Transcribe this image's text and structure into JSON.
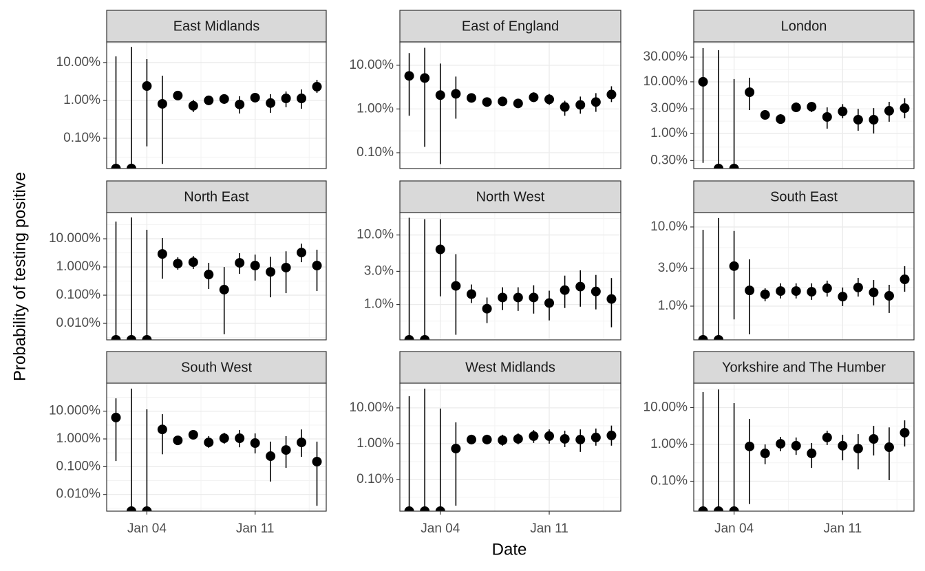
{
  "xlabel": "Date",
  "ylabel": "Probability of testing positive",
  "chart_data": [
    {
      "type": "scatter",
      "title": "East Midlands",
      "color": "#000000",
      "log_y": true,
      "grid": true,
      "x": [
        2,
        3,
        4,
        5,
        6,
        7,
        8,
        9,
        10,
        11,
        12,
        13,
        14,
        15
      ],
      "values": [
        0.0158,
        0.0158,
        2.4,
        0.81,
        1.34,
        0.72,
        1.0,
        1.09,
        0.78,
        1.18,
        0.85,
        1.13,
        1.13,
        2.3
      ],
      "lower": [
        0.0158,
        0.0158,
        0.061,
        0.021,
        1.04,
        0.49,
        0.75,
        0.81,
        0.45,
        0.88,
        0.47,
        0.66,
        0.6,
        1.58
      ],
      "upper": [
        14.6,
        26,
        12.3,
        4.5,
        1.72,
        1.04,
        1.34,
        1.46,
        1.29,
        1.58,
        1.46,
        1.72,
        1.95,
        3.5
      ],
      "xlim": [
        1.4,
        15.6
      ],
      "xticks": [
        4,
        11
      ],
      "ylim": [
        0.0158,
        35
      ],
      "yticks": [
        {
          "value": 0.1,
          "label": "0.10%"
        },
        {
          "value": 1,
          "label": "1.00%"
        },
        {
          "value": 10,
          "label": "10.00%"
        }
      ]
    },
    {
      "type": "scatter",
      "title": "East of England",
      "color": "#000000",
      "log_y": true,
      "grid": true,
      "x": [
        2,
        3,
        4,
        5,
        6,
        7,
        8,
        9,
        10,
        11,
        12,
        13,
        14,
        15
      ],
      "values": [
        5.7,
        5.1,
        2.07,
        2.22,
        1.79,
        1.44,
        1.49,
        1.34,
        1.85,
        1.66,
        1.11,
        1.24,
        1.44,
        2.14
      ],
      "lower": [
        0.7,
        0.136,
        0.055,
        0.6,
        1.44,
        1.2,
        1.2,
        1.07,
        1.44,
        1.24,
        0.7,
        0.78,
        0.86,
        1.44
      ],
      "upper": [
        18.9,
        25,
        10.9,
        5.5,
        2.2,
        1.72,
        1.85,
        1.66,
        2.4,
        2.2,
        1.54,
        1.92,
        2.3,
        3.3
      ],
      "xlim": [
        1.4,
        15.6
      ],
      "xticks": [
        4,
        11
      ],
      "ylim": [
        0.0435,
        34
      ],
      "yticks": [
        {
          "value": 0.1,
          "label": "0.10%"
        },
        {
          "value": 1,
          "label": "1.00%"
        },
        {
          "value": 10,
          "label": "10.00%"
        }
      ]
    },
    {
      "type": "scatter",
      "title": "London",
      "color": "#000000",
      "log_y": true,
      "grid": true,
      "x": [
        2,
        3,
        4,
        5,
        6,
        7,
        8,
        9,
        10,
        11,
        12,
        13,
        14,
        15
      ],
      "values": [
        10,
        0.21,
        0.21,
        6.3,
        2.29,
        1.9,
        3.2,
        3.3,
        2.09,
        2.67,
        1.85,
        1.85,
        2.75,
        3.1
      ],
      "lower": [
        0.27,
        0.21,
        0.21,
        2.84,
        1.9,
        1.54,
        2.6,
        2.6,
        1.24,
        1.97,
        1.13,
        1.0,
        1.69,
        1.97
      ],
      "upper": [
        45,
        41,
        11.3,
        12,
        2.75,
        2.36,
        4.0,
        4.1,
        3.2,
        3.7,
        3.0,
        3.1,
        4.1,
        4.8
      ],
      "xlim": [
        1.4,
        15.6
      ],
      "xticks": [
        4,
        11
      ],
      "ylim": [
        0.21,
        59
      ],
      "yticks": [
        {
          "value": 0.3,
          "label": "0.30%"
        },
        {
          "value": 1,
          "label": "1.00%"
        },
        {
          "value": 3,
          "label": "3.00%"
        },
        {
          "value": 10,
          "label": "10.00%"
        },
        {
          "value": 30,
          "label": "30.00%"
        }
      ]
    },
    {
      "type": "scatter",
      "title": "North East",
      "color": "#000000",
      "log_y": true,
      "grid": true,
      "x": [
        2,
        3,
        4,
        5,
        6,
        7,
        8,
        9,
        10,
        11,
        12,
        13,
        14,
        15
      ],
      "values": [
        0.0026,
        0.0026,
        0.0026,
        2.9,
        1.32,
        1.48,
        0.54,
        0.157,
        1.4,
        1.12,
        0.67,
        0.95,
        3.25,
        1.12
      ],
      "lower": [
        0.0026,
        0.0026,
        0.0026,
        0.385,
        0.8,
        0.85,
        0.166,
        0.0041,
        0.57,
        0.33,
        0.084,
        0.118,
        1.48,
        0.14
      ],
      "upper": [
        40.7,
        57,
        20.8,
        10.6,
        2.2,
        2.45,
        1.4,
        1.0,
        3.1,
        2.75,
        2.3,
        3.6,
        6.7,
        4.1
      ],
      "xlim": [
        1.4,
        15.6
      ],
      "xticks": [
        4,
        11
      ],
      "ylim": [
        0.0026,
        85
      ],
      "yticks": [
        {
          "value": 0.01,
          "label": "0.010%"
        },
        {
          "value": 0.1,
          "label": "0.100%"
        },
        {
          "value": 1,
          "label": "1.000%"
        },
        {
          "value": 10,
          "label": "10.000%"
        }
      ]
    },
    {
      "type": "scatter",
      "title": "North West",
      "color": "#000000",
      "log_y": true,
      "grid": true,
      "x": [
        2,
        3,
        4,
        5,
        6,
        7,
        8,
        9,
        10,
        11,
        12,
        13,
        14,
        15
      ],
      "values": [
        0.31,
        0.31,
        6.2,
        1.85,
        1.41,
        0.87,
        1.26,
        1.26,
        1.26,
        1.05,
        1.61,
        1.81,
        1.54,
        1.2
      ],
      "lower": [
        0.31,
        0.31,
        1.31,
        0.367,
        1.05,
        0.54,
        0.83,
        0.81,
        0.74,
        0.59,
        0.89,
        0.93,
        0.85,
        0.47
      ],
      "upper": [
        17.7,
        16.9,
        16.9,
        5.3,
        1.94,
        1.26,
        1.77,
        1.77,
        1.89,
        1.58,
        2.6,
        3.1,
        2.66,
        2.4
      ],
      "xlim": [
        1.4,
        15.6
      ],
      "xticks": [
        4,
        11
      ],
      "ylim": [
        0.31,
        21
      ],
      "yticks": [
        {
          "value": 1,
          "label": "1.0%"
        },
        {
          "value": 3,
          "label": "3.0%"
        },
        {
          "value": 10,
          "label": "10.0%"
        }
      ]
    },
    {
      "type": "scatter",
      "title": "South East",
      "color": "#000000",
      "log_y": true,
      "grid": true,
      "x": [
        2,
        3,
        4,
        5,
        6,
        7,
        8,
        9,
        10,
        11,
        12,
        13,
        14,
        15
      ],
      "values": [
        0.375,
        0.375,
        3.2,
        1.58,
        1.41,
        1.55,
        1.55,
        1.52,
        1.68,
        1.32,
        1.72,
        1.49,
        1.35,
        2.18
      ],
      "lower": [
        0.375,
        0.375,
        0.68,
        0.44,
        1.15,
        1.25,
        1.25,
        1.2,
        1.32,
        1.0,
        1.32,
        1.02,
        0.82,
        1.52
      ],
      "upper": [
        9.2,
        13,
        8.9,
        3.9,
        1.68,
        1.94,
        1.94,
        1.94,
        2.1,
        1.72,
        2.27,
        2.14,
        1.86,
        3.2
      ],
      "xlim": [
        1.4,
        15.6
      ],
      "xticks": [
        4,
        11
      ],
      "ylim": [
        0.375,
        15.2
      ],
      "yticks": [
        {
          "value": 1,
          "label": "1.0%"
        },
        {
          "value": 3,
          "label": "3.0%"
        },
        {
          "value": 10,
          "label": "10.0%"
        }
      ]
    },
    {
      "type": "scatter",
      "title": "South West",
      "color": "#000000",
      "log_y": true,
      "grid": true,
      "x": [
        2,
        3,
        4,
        5,
        6,
        7,
        8,
        9,
        10,
        11,
        12,
        13,
        14,
        15
      ],
      "values": [
        5.9,
        0.0025,
        0.0025,
        2.2,
        0.89,
        1.41,
        0.75,
        1.06,
        1.06,
        0.71,
        0.24,
        0.4,
        0.75,
        0.152
      ],
      "lower": [
        0.16,
        0.0025,
        0.0025,
        0.28,
        0.67,
        1.0,
        0.48,
        0.67,
        0.5,
        0.3,
        0.029,
        0.091,
        0.226,
        0.0039
      ],
      "upper": [
        29,
        65,
        11.7,
        7.8,
        1.26,
        2.1,
        1.26,
        1.67,
        2.1,
        1.58,
        0.8,
        1.26,
        2.2,
        0.8
      ],
      "xlim": [
        1.4,
        15.6
      ],
      "xticks": [
        {
          "value": 4,
          "label": "Jan 04"
        },
        {
          "value": 11,
          "label": "Jan 11"
        }
      ],
      "ylim": [
        0.0025,
        102
      ],
      "yticks": [
        {
          "value": 0.01,
          "label": "0.010%"
        },
        {
          "value": 0.1,
          "label": "0.100%"
        },
        {
          "value": 1,
          "label": "1.000%"
        },
        {
          "value": 10,
          "label": "10.000%"
        }
      ]
    },
    {
      "type": "scatter",
      "title": "West Midlands",
      "color": "#000000",
      "log_y": true,
      "grid": true,
      "x": [
        2,
        3,
        4,
        5,
        6,
        7,
        8,
        9,
        10,
        11,
        12,
        13,
        14,
        15
      ],
      "values": [
        0.013,
        0.013,
        0.013,
        0.73,
        1.3,
        1.3,
        1.25,
        1.36,
        1.63,
        1.63,
        1.36,
        1.3,
        1.49,
        1.7
      ],
      "lower": [
        0.013,
        0.013,
        0.013,
        0.0185,
        0.96,
        0.96,
        0.88,
        0.96,
        1.05,
        1.0,
        0.8,
        0.59,
        0.88,
        0.88
      ],
      "upper": [
        21.3,
        34.6,
        9.6,
        3.95,
        1.78,
        1.78,
        1.78,
        1.94,
        2.4,
        2.5,
        2.3,
        2.5,
        2.65,
        3.2
      ],
      "xlim": [
        1.4,
        15.6
      ],
      "xticks": [
        {
          "value": 4,
          "label": "Jan 04"
        },
        {
          "value": 11,
          "label": "Jan 11"
        }
      ],
      "ylim": [
        0.013,
        49
      ],
      "yticks": [
        {
          "value": 0.1,
          "label": "0.10%"
        },
        {
          "value": 1,
          "label": "1.00%"
        },
        {
          "value": 10,
          "label": "10.00%"
        }
      ]
    },
    {
      "type": "scatter",
      "title": "Yorkshire and The Humber",
      "color": "#000000",
      "log_y": true,
      "grid": true,
      "x": [
        2,
        3,
        4,
        5,
        6,
        7,
        8,
        9,
        10,
        11,
        12,
        13,
        14,
        15
      ],
      "values": [
        0.0154,
        0.0154,
        0.0154,
        0.88,
        0.57,
        1.04,
        0.92,
        0.57,
        1.54,
        0.92,
        0.77,
        1.41,
        0.84,
        2.08
      ],
      "lower": [
        0.0154,
        0.0154,
        0.0154,
        0.024,
        0.29,
        0.65,
        0.52,
        0.23,
        0.96,
        0.37,
        0.21,
        0.5,
        0.107,
        0.88
      ],
      "upper": [
        26.3,
        31,
        13.2,
        4.9,
        1.0,
        1.6,
        1.54,
        1.09,
        2.36,
        1.83,
        1.9,
        3.2,
        2.9,
        4.5
      ],
      "xlim": [
        1.4,
        15.6
      ],
      "xticks": [
        {
          "value": 4,
          "label": "Jan 04"
        },
        {
          "value": 11,
          "label": "Jan 11"
        }
      ],
      "ylim": [
        0.0154,
        46
      ],
      "yticks": [
        {
          "value": 0.1,
          "label": "0.10%"
        },
        {
          "value": 1,
          "label": "1.00%"
        },
        {
          "value": 10,
          "label": "10.00%"
        }
      ]
    }
  ]
}
